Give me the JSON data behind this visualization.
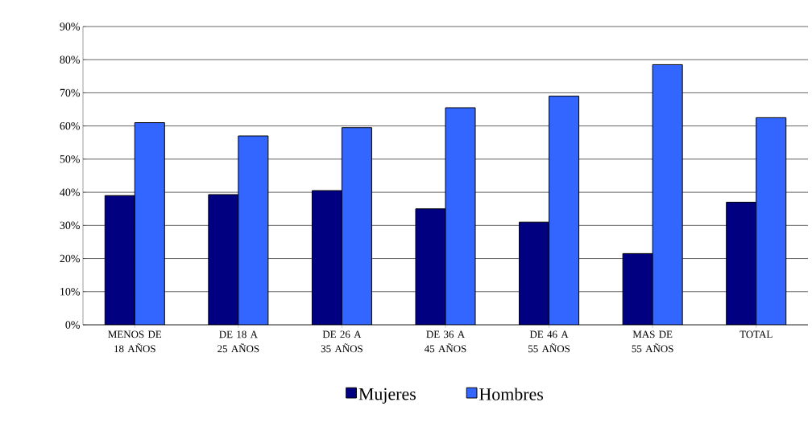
{
  "chart_data": {
    "type": "bar",
    "categories": [
      "MENOS DE 18 AÑOS",
      "DE 18 A 25 AÑOS",
      "DE 26 A 35 AÑOS",
      "DE 36 A 45 AÑOS",
      "DE 46 A 55 AÑOS",
      "MAS DE 55 AÑOS",
      "TOTAL"
    ],
    "series": [
      {
        "name": "Mujeres",
        "color": "#000080",
        "values": [
          39,
          39.3,
          40.5,
          35,
          31,
          21.5,
          37
        ]
      },
      {
        "name": "Hombres",
        "color": "#3366ff",
        "values": [
          61,
          57,
          59.5,
          65.5,
          69,
          78.5,
          62.5
        ]
      }
    ],
    "ylim": [
      0,
      90
    ],
    "yticks": [
      {
        "value": 0,
        "label": "0%"
      },
      {
        "value": 10,
        "label": "10%"
      },
      {
        "value": 20,
        "label": "20%"
      },
      {
        "value": 30,
        "label": "30%"
      },
      {
        "value": 40,
        "label": "40%"
      },
      {
        "value": 50,
        "label": "50%"
      },
      {
        "value": 60,
        "label": "60%"
      },
      {
        "value": 70,
        "label": "70%"
      },
      {
        "value": 80,
        "label": "80%"
      },
      {
        "value": 90,
        "label": "90%"
      }
    ],
    "grid": "y",
    "legend": "bottom"
  }
}
